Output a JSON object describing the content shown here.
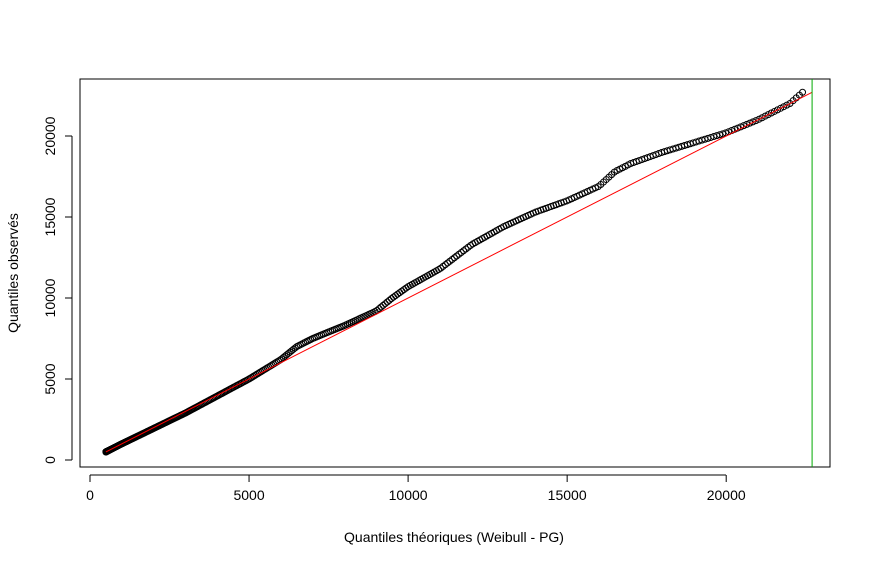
{
  "chart_data": {
    "type": "scatter",
    "title": "",
    "xlabel": "Quantiles théoriques (Weibull - PG)",
    "ylabel": "Quantiles observés",
    "xlim": [
      0,
      23000
    ],
    "ylim": [
      0,
      23000
    ],
    "x_ticks": [
      0,
      5000,
      10000,
      15000,
      20000
    ],
    "y_ticks": [
      0,
      5000,
      10000,
      15000,
      20000
    ],
    "x_tick_labels": [
      "0",
      "5000",
      "10000",
      "15000",
      "20000"
    ],
    "y_tick_labels": [
      "0",
      "5000",
      "10000",
      "15000",
      "20000"
    ],
    "grid": false,
    "marker": "open-circle",
    "point_color": "#000000",
    "reference_line": {
      "x": [
        500,
        22700
      ],
      "y": [
        500,
        22700
      ],
      "color": "#ff0000"
    },
    "vertical_line": {
      "x": 22700,
      "color": "#00aa00"
    },
    "curve_points": [
      [
        500,
        500
      ],
      [
        1000,
        1000
      ],
      [
        2000,
        1950
      ],
      [
        3000,
        2900
      ],
      [
        4000,
        3950
      ],
      [
        5000,
        5000
      ],
      [
        6000,
        6200
      ],
      [
        6500,
        7000
      ],
      [
        7000,
        7500
      ],
      [
        8000,
        8300
      ],
      [
        9000,
        9200
      ],
      [
        9500,
        10000
      ],
      [
        10000,
        10700
      ],
      [
        11000,
        11800
      ],
      [
        12000,
        13300
      ],
      [
        13000,
        14400
      ],
      [
        14000,
        15300
      ],
      [
        15000,
        16000
      ],
      [
        16000,
        16900
      ],
      [
        16500,
        17800
      ],
      [
        17000,
        18300
      ],
      [
        18000,
        19000
      ],
      [
        19000,
        19600
      ],
      [
        20000,
        20200
      ],
      [
        21000,
        21000
      ],
      [
        22000,
        22000
      ],
      [
        22400,
        22700
      ]
    ],
    "point_count": 420
  }
}
